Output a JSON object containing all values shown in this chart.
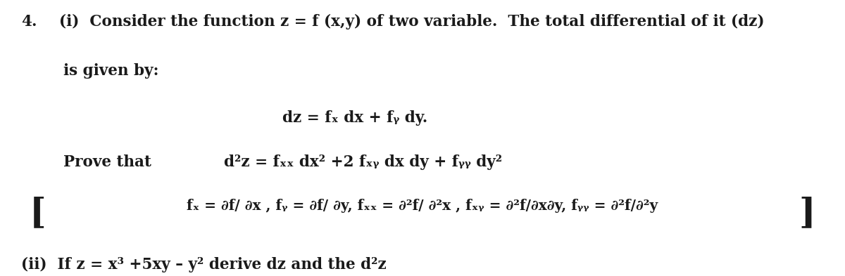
{
  "bg_color": "#ffffff",
  "text_color": "#1a1a1a",
  "line1_num": "4.",
  "line1_rest": "(i)  Consider the function z = f (x,y) of two variable.  The total differential of it (dz)",
  "line2": "is given by:",
  "line3": "dz = fₓ dx + fᵧ dy.",
  "line4_label": "Prove that",
  "line4_eq": "d²z = fₓₓ dx² +2 fₓᵧ dx dy + fᵧᵧ dy²",
  "line5": "fₓ = ∂f/ ∂x , fᵧ = ∂f/ ∂y, fₓₓ = ∂²f/ ∂²x , fₓᵧ = ∂²f/∂x∂y, fᵧᵧ = ∂²f/∂²y",
  "line6": "(ii)  If z = x³ +5xy – y² derive dz and the d²z",
  "font_size": 15.5,
  "font_size_bracket_line": 14.5
}
